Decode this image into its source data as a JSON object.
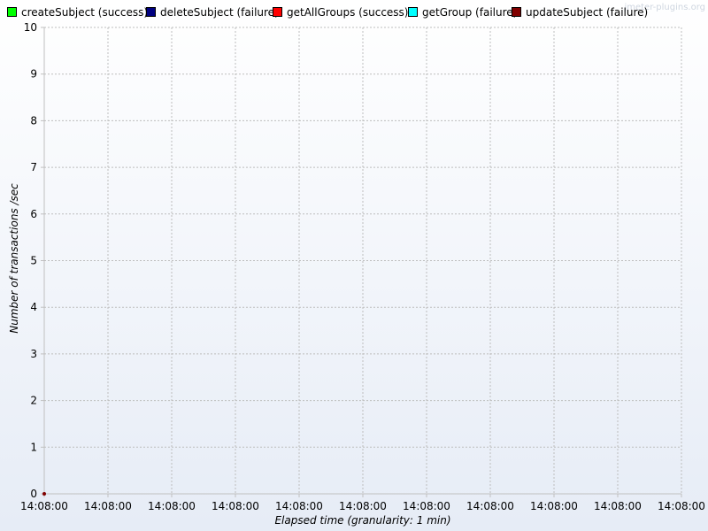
{
  "watermark": "jmeter-plugins.org",
  "colors": {
    "axis": "#c0c0c0",
    "grid": "#bdbdbd",
    "legend_border": "#000000"
  },
  "chart_data": {
    "type": "line",
    "title": "",
    "xlabel": "Elapsed time (granularity: 1 min)",
    "ylabel": "Number of transactions /sec",
    "ylim": [
      0,
      10
    ],
    "y_ticks": [
      0,
      1,
      2,
      3,
      4,
      5,
      6,
      7,
      8,
      9,
      10
    ],
    "x_tick_labels": [
      "14:08:00",
      "14:08:00",
      "14:08:00",
      "14:08:00",
      "14:08:00",
      "14:08:00",
      "14:08:00",
      "14:08:00",
      "14:08:00",
      "14:08:00",
      "14:08:00"
    ],
    "grid": true,
    "legend_position": "top",
    "series": [
      {
        "name": "createSubject (success)",
        "color": "#00ff00",
        "points": []
      },
      {
        "name": "deleteSubject (failure)",
        "color": "#000080",
        "points": []
      },
      {
        "name": "getAllGroups (success)",
        "color": "#ff0000",
        "points": []
      },
      {
        "name": "getGroup (failure)",
        "color": "#00ffff",
        "points": []
      },
      {
        "name": "updateSubject (failure)",
        "color": "#800000",
        "points": [
          {
            "x": "14:08:00",
            "y": 0
          }
        ]
      }
    ]
  }
}
